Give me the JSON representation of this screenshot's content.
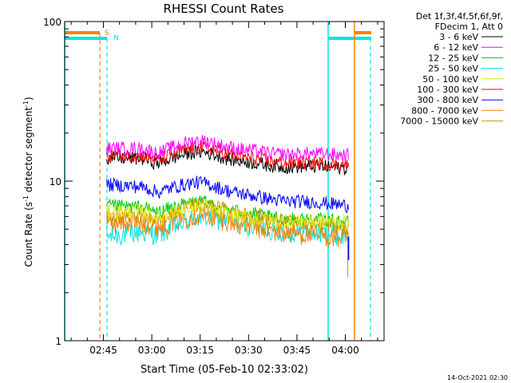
{
  "chart_data": {
    "type": "line",
    "title": "RHESSI Count Rates",
    "xlabel": "Start Time (05-Feb-10 02:33:02)",
    "ylabel_main": "Count Rate (s",
    "ylabel_sup": "-1",
    "ylabel_mid": " detector segment",
    "ylabel_sup2": "-1",
    "ylabel_end": ")",
    "y_scale": "log",
    "ylim": [
      1,
      100
    ],
    "xlim": [
      "02:33",
      "04:12"
    ],
    "x_ticks": [
      "02:45",
      "03:00",
      "03:15",
      "03:30",
      "03:45",
      "04:00"
    ],
    "y_ticks": [
      "1",
      "10",
      "100"
    ],
    "legend_header": [
      "Det 1f,3f,4f,5f,6f,9f,",
      "FDecim 1, Att 0"
    ],
    "markers": [
      {
        "label": "S",
        "color": "#ff8000"
      },
      {
        "label": "N",
        "color": "#00e5e5"
      }
    ],
    "timestamp": "14-Oct-2021 02:30",
    "series": [
      {
        "name": "3 - 6 keV",
        "color": "#000000",
        "start": 14,
        "mid": 13.5,
        "end": 12
      },
      {
        "name": "6 - 12 keV",
        "color": "#ff00ff",
        "start": 16,
        "mid": 16,
        "end": 14.5
      },
      {
        "name": "12 - 25 keV",
        "color": "#00cc00",
        "start": 7,
        "mid": 6.5,
        "end": 5.5
      },
      {
        "name": "25 - 50 keV",
        "color": "#00e5e5",
        "start": 4.5,
        "mid": 5.5,
        "end": 4.5
      },
      {
        "name": "50 - 100 keV",
        "color": "#e5e500",
        "start": 6.5,
        "mid": 6,
        "end": 5.5
      },
      {
        "name": "100 - 300 keV",
        "color": "#ff0000",
        "start": 14.5,
        "mid": 14.5,
        "end": 12.5
      },
      {
        "name": "300 - 800 keV",
        "color": "#0000ff",
        "start": 9.5,
        "mid": 8.5,
        "end": 7
      },
      {
        "name": "800 - 7000 keV",
        "color": "#ff8000",
        "start": 5.5,
        "mid": 5.5,
        "end": 4.3
      },
      {
        "name": "7000 - 15000 keV",
        "color": "#cc9900",
        "start": 5.8,
        "mid": 6.5,
        "end": 5
      }
    ]
  }
}
